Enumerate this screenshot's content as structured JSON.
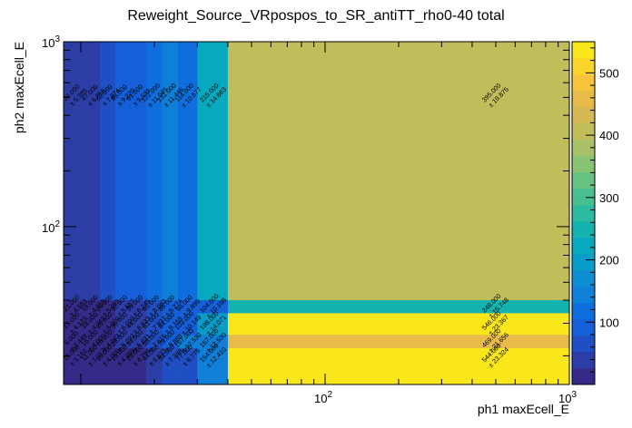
{
  "chart_data": {
    "type": "heatmap",
    "title": "Reweight_Source_VRpospos_to_SR_antiTT_rho0-40 total",
    "xlabel": "ph1 maxEcell_E",
    "ylabel": "ph2 maxEcell_E",
    "x_scale": "log",
    "y_scale": "log",
    "xlim": [
      8.5,
      1000
    ],
    "ylim": [
      14,
      1000
    ],
    "zlim": [
      0,
      550
    ],
    "x_ticks": [
      {
        "value": 100,
        "base": "10",
        "exp": "2"
      },
      {
        "value": 1000,
        "base": "10",
        "exp": "3"
      }
    ],
    "y_ticks": [
      {
        "value": 100,
        "base": "10",
        "exp": "2"
      },
      {
        "value": 1000,
        "base": "10",
        "exp": "3"
      }
    ],
    "colorbar_ticks": [
      "100",
      "200",
      "300",
      "400",
      "500"
    ],
    "colorbar_tick_values": [
      100,
      200,
      300,
      400,
      500
    ],
    "x_edges": [
      8.5,
      10.5,
      12,
      13.8,
      15.9,
      18.5,
      21.5,
      25,
      30,
      40,
      1000
    ],
    "y_edges": [
      14,
      18,
      22,
      26,
      34,
      40,
      1000
    ],
    "cells": [
      {
        "xi": 0,
        "yi": 5,
        "value": 29.0,
        "label": "29.000",
        "error": "± 5.385"
      },
      {
        "xi": 1,
        "yi": 5,
        "value": 47.0,
        "label": "47.000",
        "error": "± 6.856"
      },
      {
        "xi": 2,
        "yi": 5,
        "value": 62.0,
        "label": "62.000",
        "error": "± 7.874"
      },
      {
        "xi": 3,
        "yi": 5,
        "value": 85.0,
        "label": "85.000",
        "error": "± 9.220"
      },
      {
        "xi": 4,
        "yi": 5,
        "value": 91.0,
        "label": "91.000",
        "error": "± 9.539"
      },
      {
        "xi": 5,
        "yi": 5,
        "value": 122.0,
        "label": "122.000",
        "error": "± 11.045"
      },
      {
        "xi": 6,
        "yi": 5,
        "value": 131.0,
        "label": "131.000",
        "error": "± 11.446"
      },
      {
        "xi": 7,
        "yi": 5,
        "value": 114.0,
        "label": "114.000",
        "error": "± 10.677"
      },
      {
        "xi": 8,
        "yi": 5,
        "value": 215.0,
        "label": "215.000",
        "error": "± 14.663"
      },
      {
        "xi": 9,
        "yi": 5,
        "value": 395.0,
        "label": "395.000",
        "error": "± 19.875"
      },
      {
        "xi": 0,
        "yi": 4,
        "value": 21.0,
        "label": "21.000",
        "error": "± 4.583"
      },
      {
        "xi": 1,
        "yi": 4,
        "value": 19.0,
        "label": "19.000",
        "error": "± 4.359"
      },
      {
        "xi": 2,
        "yi": 4,
        "value": 26.0,
        "label": "26.000",
        "error": "± 5.099"
      },
      {
        "xi": 3,
        "yi": 4,
        "value": 32.0,
        "label": "32.000",
        "error": "± 5.657"
      },
      {
        "xi": 4,
        "yi": 4,
        "value": 39.0,
        "label": "39.000",
        "error": "± 6.245"
      },
      {
        "xi": 5,
        "yi": 4,
        "value": 65.0,
        "label": "65.000",
        "error": "± 8.062"
      },
      {
        "xi": 6,
        "yi": 4,
        "value": 86.0,
        "label": "86.000",
        "error": "± 9.274"
      },
      {
        "xi": 7,
        "yi": 4,
        "value": 98.0,
        "label": "98.000",
        "error": "± 9.899"
      },
      {
        "xi": 8,
        "yi": 4,
        "value": 104.0,
        "label": "104.000",
        "error": "± 10.198"
      },
      {
        "xi": 9,
        "yi": 4,
        "value": 248.0,
        "label": "248.000",
        "error": "± 15.748"
      },
      {
        "xi": 0,
        "yi": 3,
        "value": 17.0,
        "label": "17.000",
        "error": "± 4.123"
      },
      {
        "xi": 1,
        "yi": 3,
        "value": 18.0,
        "label": "18.000",
        "error": "± 4.243"
      },
      {
        "xi": 2,
        "yi": 3,
        "value": 25.0,
        "label": "25.000",
        "error": "± 5.000"
      },
      {
        "xi": 3,
        "yi": 3,
        "value": 36.0,
        "label": "36.000",
        "error": "± 6.000"
      },
      {
        "xi": 4,
        "yi": 3,
        "value": 44.0,
        "label": "44.000",
        "error": "± 6.633"
      },
      {
        "xi": 5,
        "yi": 3,
        "value": 63.0,
        "label": "63.000",
        "error": "± 7.937"
      },
      {
        "xi": 6,
        "yi": 3,
        "value": 84.0,
        "label": "84.000",
        "error": "± 9.165"
      },
      {
        "xi": 7,
        "yi": 3,
        "value": 103.0,
        "label": "103.000",
        "error": "± 10.149"
      },
      {
        "xi": 8,
        "yi": 3,
        "value": 198.0,
        "label": "198.000",
        "error": "± 14.071"
      },
      {
        "xi": 9,
        "yi": 3,
        "value": 546.0,
        "label": "546.000",
        "error": "± 23.367"
      },
      {
        "xi": 0,
        "yi": 2,
        "value": 6.0,
        "label": "6.000",
        "error": "± 2.449"
      },
      {
        "xi": 1,
        "yi": 2,
        "value": 16.0,
        "label": "16.000",
        "error": "± 4.000"
      },
      {
        "xi": 2,
        "yi": 2,
        "value": 18.0,
        "label": "18.000",
        "error": "± 4.243"
      },
      {
        "xi": 3,
        "yi": 2,
        "value": 28.0,
        "label": "28.000",
        "error": "± 5.292"
      },
      {
        "xi": 4,
        "yi": 2,
        "value": 34.0,
        "label": "34.000",
        "error": "± 5.831"
      },
      {
        "xi": 5,
        "yi": 2,
        "value": 58.0,
        "label": "58.000",
        "error": "± 7.616"
      },
      {
        "xi": 6,
        "yi": 2,
        "value": 79.0,
        "label": "79.000",
        "error": "± 8.888"
      },
      {
        "xi": 7,
        "yi": 2,
        "value": 157.0,
        "label": "157.000",
        "error": "± 12.530"
      },
      {
        "xi": 8,
        "yi": 2,
        "value": 157.0,
        "label": "157.000",
        "error": "± 12.530"
      },
      {
        "xi": 9,
        "yi": 2,
        "value": 469.0,
        "label": "469.000",
        "error": "± 21.656"
      },
      {
        "xi": 0,
        "yi": 1,
        "value": 10.0,
        "label": "10.000",
        "error": "± 3.162"
      },
      {
        "xi": 1,
        "yi": 1,
        "value": 11.0,
        "label": "11.000",
        "error": "± 3.317"
      },
      {
        "xi": 2,
        "yi": 1,
        "value": 16.0,
        "label": "16.000",
        "error": "± 4.000"
      },
      {
        "xi": 3,
        "yi": 1,
        "value": 19.0,
        "label": "19.000",
        "error": "± 4.359"
      },
      {
        "xi": 4,
        "yi": 1,
        "value": 23.0,
        "label": "23.000",
        "error": "± 4.796"
      },
      {
        "xi": 5,
        "yi": 1,
        "value": 44.0,
        "label": "44.000",
        "error": "± 6.633"
      },
      {
        "xi": 6,
        "yi": 1,
        "value": 54.0,
        "label": "54.000",
        "error": "± 7.348"
      },
      {
        "xi": 7,
        "yi": 1,
        "value": 77.0,
        "label": "77.000",
        "error": "± 8.775"
      },
      {
        "xi": 8,
        "yi": 1,
        "value": 154.0,
        "label": "154.000",
        "error": "± 12.410"
      },
      {
        "xi": 9,
        "yi": 1,
        "value": 544.0,
        "label": "544.000",
        "error": "± 23.324"
      },
      {
        "xi": 0,
        "yi": 0,
        "value": 10.0,
        "label": "",
        "error": ""
      },
      {
        "xi": 1,
        "yi": 0,
        "value": 11.0,
        "label": "",
        "error": ""
      },
      {
        "xi": 2,
        "yi": 0,
        "value": 16.0,
        "label": "",
        "error": ""
      },
      {
        "xi": 3,
        "yi": 0,
        "value": 19.0,
        "label": "",
        "error": ""
      },
      {
        "xi": 4,
        "yi": 0,
        "value": 23.0,
        "label": "",
        "error": ""
      },
      {
        "xi": 5,
        "yi": 0,
        "value": 44.0,
        "label": "",
        "error": ""
      },
      {
        "xi": 6,
        "yi": 0,
        "value": 54.0,
        "label": "",
        "error": ""
      },
      {
        "xi": 7,
        "yi": 0,
        "value": 77.0,
        "label": "",
        "error": ""
      },
      {
        "xi": 8,
        "yi": 0,
        "value": 154.0,
        "label": "",
        "error": ""
      },
      {
        "xi": 9,
        "yi": 0,
        "value": 544.0,
        "label": "",
        "error": ""
      }
    ],
    "palette": [
      "#352a87",
      "#2c3da6",
      "#1f4fc2",
      "#155fd8",
      "#0f6ede",
      "#0f7fd8",
      "#0d8ed2",
      "#089cc8",
      "#06a9bd",
      "#14b3af",
      "#2cbaa0",
      "#47bf90",
      "#66c281",
      "#87c373",
      "#a6c166",
      "#c2bd5b",
      "#d6b954",
      "#e7ba4a",
      "#f6c33b",
      "#f9d42a",
      "#f9e71c"
    ],
    "grid": false,
    "legend": "none"
  }
}
